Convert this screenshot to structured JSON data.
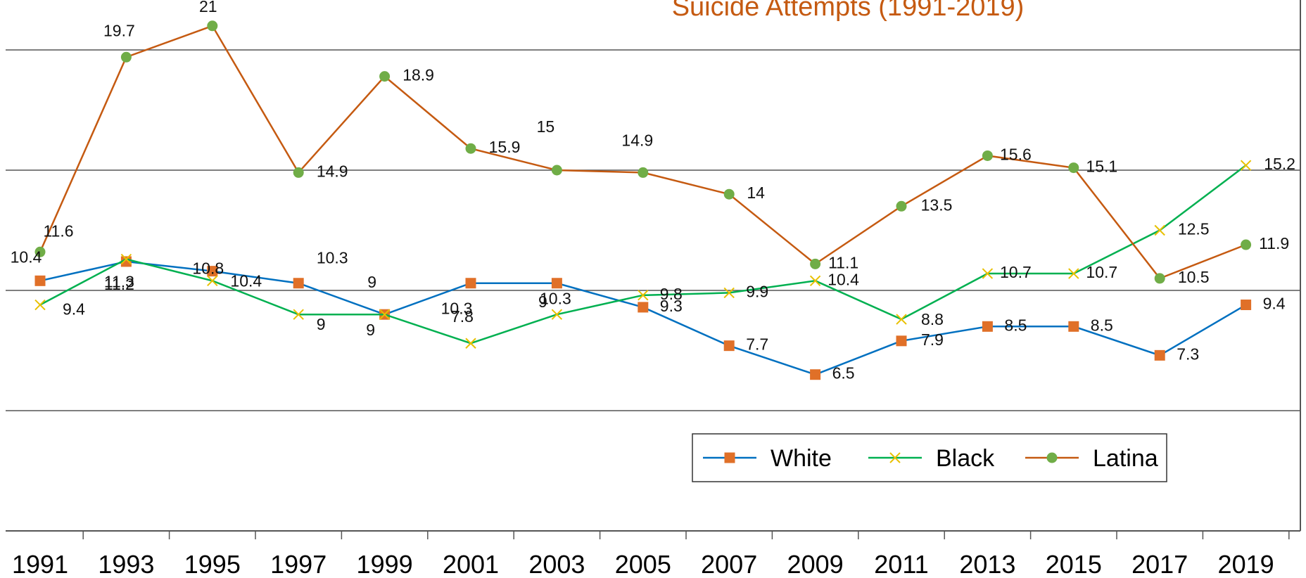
{
  "chart_data": {
    "type": "line",
    "title": "Suicide Attempts (1991-2019)",
    "x": [
      "1991",
      "1993",
      "1995",
      "1997",
      "1999",
      "2001",
      "2003",
      "2005",
      "2007",
      "2009",
      "2011",
      "2013",
      "2015",
      "2017",
      "2019"
    ],
    "series": [
      {
        "name": "White",
        "color": "#0070c0",
        "marker": "square",
        "marker_color": "#e07028",
        "values": [
          10.4,
          11.2,
          10.8,
          10.3,
          9.0,
          10.3,
          10.3,
          9.3,
          7.7,
          6.5,
          7.9,
          8.5,
          8.5,
          7.3,
          9.4
        ]
      },
      {
        "name": "Black",
        "color": "#00b050",
        "marker": "x",
        "marker_color": "#e8c000",
        "values": [
          9.4,
          11.3,
          10.4,
          9.0,
          9.0,
          7.8,
          9.0,
          9.8,
          9.9,
          10.4,
          8.8,
          10.7,
          10.7,
          12.5,
          15.2
        ]
      },
      {
        "name": "Latina",
        "color": "#c55a11",
        "marker": "circle",
        "marker_color": "#70ad47",
        "values": [
          11.6,
          19.7,
          21.0,
          14.9,
          18.9,
          15.9,
          15.0,
          14.9,
          14.0,
          11.1,
          13.5,
          15.6,
          15.1,
          10.5,
          11.9
        ]
      }
    ],
    "ylim": [
      0,
      25
    ],
    "grid": true,
    "legend": "bottom-right"
  }
}
